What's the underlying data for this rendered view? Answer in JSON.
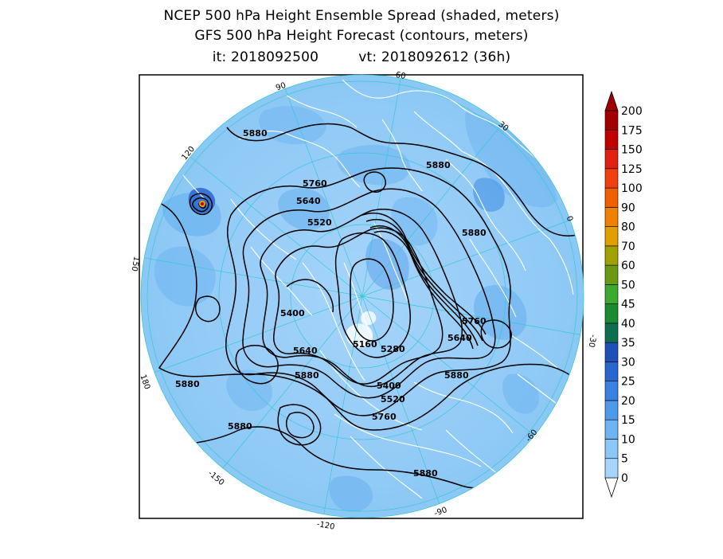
{
  "title": {
    "line1": "NCEP 500 hPa Height Ensemble Spread (shaded, meters)",
    "line2": "GFS 500 hPa Height Forecast (contours, meters)",
    "it": "it: 2018092500",
    "vt": "vt: 2018092612 (36h)"
  },
  "map": {
    "projection": "north polar stereographic",
    "ocean_spread_color": "#8cc8f5",
    "coast_color": "#ffffff",
    "contour_color": "#000000",
    "longitude_labels": [
      "60",
      "30",
      "0",
      "-30",
      "-60",
      "-90",
      "-120",
      "-150",
      "180",
      "150",
      "120",
      "90"
    ],
    "contour_labels": [
      "5880",
      "5880",
      "5880",
      "5880",
      "5880",
      "5880",
      "5880",
      "5880",
      "5760",
      "5760",
      "5760",
      "5640",
      "5640",
      "5640",
      "5520",
      "5520",
      "5400",
      "5400",
      "5280",
      "5160"
    ]
  },
  "colorbar": {
    "levels": [
      "0",
      "5",
      "10",
      "15",
      "20",
      "25",
      "30",
      "35",
      "40",
      "45",
      "50",
      "60",
      "70",
      "80",
      "90",
      "100",
      "125",
      "150",
      "175",
      "200"
    ],
    "colors": [
      "#a6d4fa",
      "#8cc8f5",
      "#6eb4f0",
      "#4f9ae8",
      "#3a80e0",
      "#2a66d0",
      "#1f4fb8",
      "#0f6e50",
      "#1c8a30",
      "#3caa30",
      "#6a9a10",
      "#a0a000",
      "#e0a000",
      "#f08000",
      "#f06000",
      "#f04010",
      "#e02010",
      "#c00000",
      "#a00000"
    ]
  }
}
